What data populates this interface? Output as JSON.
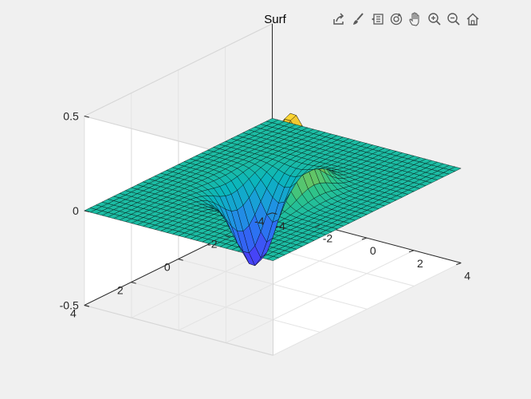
{
  "window": {
    "background": "#f0f0f0"
  },
  "toolbar": {
    "items": [
      {
        "name": "export-icon",
        "label": "Export"
      },
      {
        "name": "brush-icon",
        "label": "Brush"
      },
      {
        "name": "datatip-icon",
        "label": "Data Tips"
      },
      {
        "name": "rotate-3d-icon",
        "label": "Rotate 3D"
      },
      {
        "name": "pan-icon",
        "label": "Pan"
      },
      {
        "name": "zoom-in-icon",
        "label": "Zoom In"
      },
      {
        "name": "zoom-out-icon",
        "label": "Zoom Out"
      },
      {
        "name": "home-icon",
        "label": "Restore View"
      }
    ]
  },
  "chart_data": {
    "type": "surface",
    "title": "Surf",
    "function": "x.*exp(-x.^2-y.^2)",
    "xlim": [
      -4,
      4
    ],
    "ylim": [
      -4,
      4
    ],
    "zlim": [
      -0.5,
      0.5
    ],
    "x_ticks": [
      "-4",
      "-2",
      "0",
      "2",
      "4"
    ],
    "y_ticks": [
      "-4",
      "-2",
      "0",
      "2",
      "4"
    ],
    "z_ticks": [
      "-0.5",
      "0",
      "0.5"
    ],
    "grid": true,
    "colormap": "parula",
    "colormap_stops": [
      "#3e26a8",
      "#4743f7",
      "#2d6ff3",
      "#1c9ade",
      "#0bb5bc",
      "#2dc38a",
      "#8cc74a",
      "#e0b92b",
      "#fcd234",
      "#f9fb14"
    ],
    "edge_color": "#000000",
    "face_alpha": 1,
    "mesh_step": 0.25,
    "peak": {
      "x": 0.71,
      "y": 0,
      "z": 0.43
    },
    "trough": {
      "x": -0.71,
      "y": 0,
      "z": -0.43
    }
  }
}
